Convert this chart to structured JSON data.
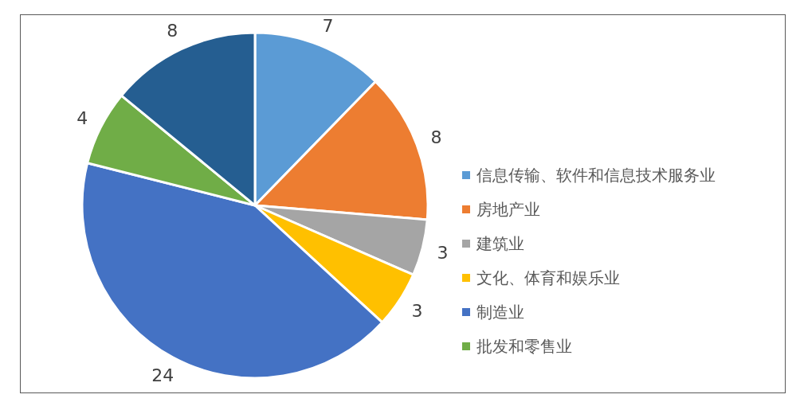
{
  "chart_data": {
    "type": "pie",
    "categories": [
      "信息传输、软件和信息技术服务业",
      "房地产业",
      "建筑业",
      "文化、体育和娱乐业",
      "制造业",
      "批发和零售业",
      null
    ],
    "values": [
      7,
      8,
      3,
      3,
      24,
      4,
      8
    ],
    "colors": [
      "#5b9bd5",
      "#ed7d31",
      "#a5a5a5",
      "#ffc000",
      "#4472c4",
      "#70ad47",
      "#255e91"
    ],
    "data_labels": true,
    "legend": "right"
  }
}
